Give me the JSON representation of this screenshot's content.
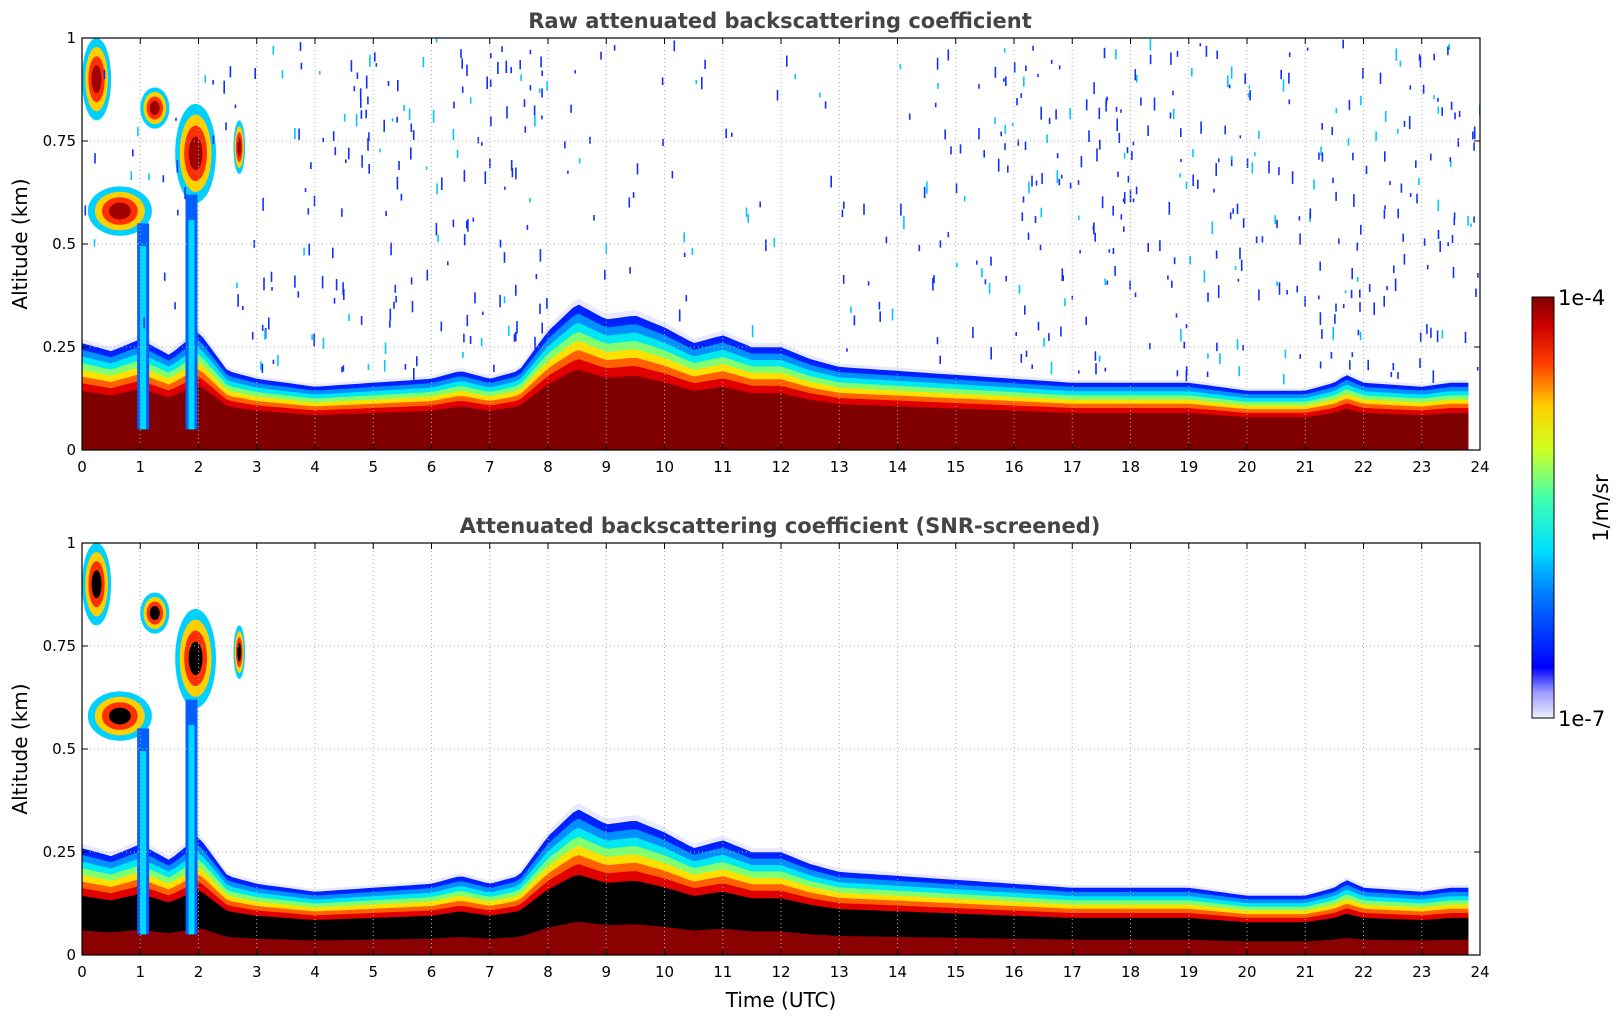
{
  "chart_data": [
    {
      "type": "heatmap",
      "title": "Raw attenuated backscattering coefficient",
      "xlabel": "",
      "ylabel": "Altitude (km)",
      "xlim": [
        0,
        24
      ],
      "ylim": [
        0,
        1
      ],
      "xticks": [
        "0",
        "1",
        "2",
        "3",
        "4",
        "5",
        "6",
        "7",
        "8",
        "9",
        "10",
        "11",
        "12",
        "13",
        "14",
        "15",
        "16",
        "17",
        "18",
        "19",
        "20",
        "21",
        "22",
        "23",
        "24"
      ],
      "yticks": [
        "0",
        "0.25",
        "0.5",
        "0.75",
        "1"
      ],
      "grid": true,
      "screened": false,
      "layer_top_km": [
        [
          0,
          0.27
        ],
        [
          0.5,
          0.25
        ],
        [
          1,
          0.28
        ],
        [
          1.5,
          0.24
        ],
        [
          2,
          0.3
        ],
        [
          2.5,
          0.2
        ],
        [
          3,
          0.18
        ],
        [
          4,
          0.16
        ],
        [
          5,
          0.17
        ],
        [
          6,
          0.18
        ],
        [
          6.5,
          0.2
        ],
        [
          7,
          0.18
        ],
        [
          7.5,
          0.2
        ],
        [
          8,
          0.3
        ],
        [
          8.5,
          0.37
        ],
        [
          9,
          0.33
        ],
        [
          9.5,
          0.34
        ],
        [
          10,
          0.31
        ],
        [
          10.5,
          0.27
        ],
        [
          11,
          0.29
        ],
        [
          11.5,
          0.26
        ],
        [
          12,
          0.26
        ],
        [
          12.5,
          0.23
        ],
        [
          13,
          0.21
        ],
        [
          14,
          0.2
        ],
        [
          15,
          0.19
        ],
        [
          16,
          0.18
        ],
        [
          17,
          0.17
        ],
        [
          18,
          0.17
        ],
        [
          19,
          0.17
        ],
        [
          19.5,
          0.16
        ],
        [
          20,
          0.15
        ],
        [
          21,
          0.15
        ],
        [
          21.5,
          0.17
        ],
        [
          21.7,
          0.19
        ],
        [
          22,
          0.17
        ],
        [
          23,
          0.16
        ],
        [
          23.5,
          0.17
        ],
        [
          23.8,
          0.17
        ]
      ],
      "cloud_patches_km": [
        {
          "t": [
            0,
            0.5
          ],
          "alt": [
            0.8,
            1.0
          ]
        },
        {
          "t": [
            0.1,
            1.2
          ],
          "alt": [
            0.52,
            0.64
          ]
        },
        {
          "t": [
            1.0,
            1.5
          ],
          "alt": [
            0.78,
            0.88
          ]
        },
        {
          "t": [
            1.6,
            2.3
          ],
          "alt": [
            0.6,
            0.84
          ]
        },
        {
          "t": [
            2.6,
            2.8
          ],
          "alt": [
            0.67,
            0.8
          ]
        }
      ]
    },
    {
      "type": "heatmap",
      "title": "Attenuated backscattering coefficient (SNR-screened)",
      "xlabel": "Time (UTC)",
      "ylabel": "Altitude (km)",
      "xlim": [
        0,
        24
      ],
      "ylim": [
        0,
        1
      ],
      "xticks": [
        "0",
        "1",
        "2",
        "3",
        "4",
        "5",
        "6",
        "7",
        "8",
        "9",
        "10",
        "11",
        "12",
        "13",
        "14",
        "15",
        "16",
        "17",
        "18",
        "19",
        "20",
        "21",
        "22",
        "23",
        "24"
      ],
      "yticks": [
        "0",
        "0.25",
        "0.5",
        "0.75",
        "1"
      ],
      "grid": true,
      "screened": true
    }
  ],
  "colorbar": {
    "min_label": "1e-7",
    "max_label": "1e-4",
    "unit": "1/m/sr",
    "colormap": "jet"
  }
}
